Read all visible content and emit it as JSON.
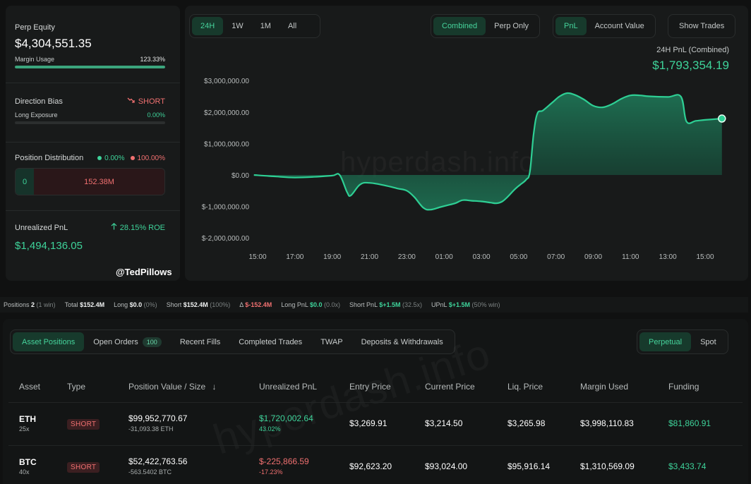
{
  "left": {
    "perp_equity_label": "Perp Equity",
    "perp_equity_value": "$4,304,551.35",
    "margin_usage_label": "Margin Usage",
    "margin_usage_value": "123.33%",
    "margin_usage_fill": 1.0,
    "direction_bias_label": "Direction Bias",
    "direction_bias_value": "SHORT",
    "long_exposure_label": "Long Exposure",
    "long_exposure_value": "0.00%",
    "long_exposure_fill": 0.0,
    "position_distribution_label": "Position Distribution",
    "dist_long_pct": "0.00%",
    "dist_short_pct": "100.00%",
    "dist_long_value": "0",
    "dist_short_value": "152.38M",
    "unrealized_pnl_label": "Unrealized PnL",
    "roe_value": "28.15% ROE",
    "unrealized_pnl_value": "$1,494,136.05",
    "author_tag": "@TedPillows"
  },
  "chart_controls": {
    "timeframes": [
      "24H",
      "1W",
      "1M",
      "All"
    ],
    "active_timeframe": "24H",
    "scope": [
      "Combined",
      "Perp Only"
    ],
    "active_scope": "Combined",
    "metric": [
      "PnL",
      "Account Value"
    ],
    "active_metric": "PnL",
    "show_trades_label": "Show Trades"
  },
  "chart_header": {
    "label": "24H PnL (Combined)",
    "value": "$1,793,354.19"
  },
  "watermark": "hyperdash.info",
  "chart_data": {
    "type": "area",
    "title": "",
    "xlabel": "",
    "ylabel": "",
    "ylim": [
      -2000000,
      3000000
    ],
    "y_ticks": [
      3000000,
      2000000,
      1000000,
      0,
      -1000000,
      -2000000
    ],
    "y_tick_labels": [
      "$3,000,000.00",
      "$2,000,000.00",
      "$1,000,000.00",
      "$0.00",
      "$-1,000,000.00",
      "$-2,000,000.00"
    ],
    "x_tick_labels": [
      "15:00",
      "17:00",
      "19:00",
      "21:00",
      "23:00",
      "01:00",
      "03:00",
      "05:00",
      "07:00",
      "09:00",
      "11:00",
      "13:00",
      "15:00"
    ],
    "x_tick_hours": [
      0,
      2,
      4,
      6,
      8,
      10,
      12,
      14,
      16,
      18,
      20,
      22,
      24
    ],
    "series": [
      {
        "x": [
          -0.2,
          1.0,
          2.0,
          3.0,
          4.0,
          4.4,
          4.8,
          5.0,
          5.5,
          6.0,
          6.8,
          7.5,
          8.0,
          8.4,
          8.9,
          9.3,
          9.8,
          10.2,
          10.6,
          11.0,
          11.5,
          12.0,
          12.5,
          12.8,
          13.1,
          13.4,
          13.8,
          14.1,
          14.4,
          14.6,
          14.8,
          15.0,
          15.3,
          15.8,
          16.2,
          16.6,
          17.0,
          17.5,
          18.0,
          18.5,
          19.0,
          19.5,
          20.0,
          20.5,
          21.0,
          22.0,
          22.7,
          23.0,
          23.5,
          24.0,
          24.9
        ],
        "y": [
          0,
          -50000,
          -80000,
          -60000,
          -20000,
          0,
          -550000,
          -650000,
          -300000,
          -250000,
          -330000,
          -430000,
          -500000,
          -700000,
          -1050000,
          -1100000,
          -1020000,
          -960000,
          -900000,
          -800000,
          -820000,
          -840000,
          -880000,
          -900000,
          -850000,
          -700000,
          -450000,
          -300000,
          -150000,
          100000,
          1300000,
          1950000,
          2050000,
          2300000,
          2500000,
          2600000,
          2550000,
          2400000,
          2200000,
          2150000,
          2250000,
          2420000,
          2530000,
          2530000,
          2500000,
          2480000,
          2490000,
          1700000,
          1720000,
          1750000,
          1793354
        ]
      }
    ],
    "end_marker": true,
    "grid": false,
    "legend": "none",
    "line_color": "#2ecf94"
  },
  "stats": [
    {
      "label": "Positions",
      "value": "2",
      "note": "(1 win)"
    },
    {
      "label": "Total",
      "value": "$152.4M",
      "note": ""
    },
    {
      "label": "Long",
      "value": "$0.0",
      "note": "(0%)"
    },
    {
      "label": "Short",
      "value": "$152.4M",
      "note": "(100%)"
    },
    {
      "label": "Δ",
      "value": "$-152.4M",
      "note": "",
      "color": "red"
    },
    {
      "label": "Long PnL",
      "value": "$0.0",
      "note": "(0.0x)",
      "color": "green"
    },
    {
      "label": "Short PnL",
      "value": "$+1.5M",
      "note": "(32.5x)",
      "color": "green"
    },
    {
      "label": "UPnL",
      "value": "$+1.5M",
      "note": "(50% win)",
      "color": "green"
    }
  ],
  "tabs": {
    "items": [
      "Asset Positions",
      "Open Orders",
      "Recent Fills",
      "Completed Trades",
      "TWAP",
      "Deposits & Withdrawals"
    ],
    "active": "Asset Positions",
    "open_orders_count": "100",
    "market": [
      "Perpetual",
      "Spot"
    ],
    "active_market": "Perpetual"
  },
  "table": {
    "headers": [
      "Asset",
      "Type",
      "Position Value / Size",
      "Unrealized PnL",
      "Entry Price",
      "Current Price",
      "Liq. Price",
      "Margin Used",
      "Funding"
    ],
    "sort_arrow": "↓",
    "rows": [
      {
        "asset": "ETH",
        "leverage": "25x",
        "type": "SHORT",
        "position_value": "$99,952,770.67",
        "size": "-31,093.38 ETH",
        "upnl": "$1,720,002.64",
        "upnl_pct": "43.02%",
        "upnl_sign": "pos",
        "entry": "$3,269.91",
        "current": "$3,214.50",
        "liq": "$3,265.98",
        "margin": "$3,998,110.83",
        "funding": "$81,860.91"
      },
      {
        "asset": "BTC",
        "leverage": "40x",
        "type": "SHORT",
        "position_value": "$52,422,763.56",
        "size": "-563.5402 BTC",
        "upnl": "$-225,866.59",
        "upnl_pct": "-17.23%",
        "upnl_sign": "neg",
        "entry": "$92,623.20",
        "current": "$93,024.00",
        "liq": "$95,916.14",
        "margin": "$1,310,569.09",
        "funding": "$3,433.74"
      }
    ]
  },
  "colors": {
    "accent_green": "#3ed39a",
    "negative_red": "#f07070",
    "panel_bg": "#181a1a",
    "page_bg": "#101111"
  }
}
